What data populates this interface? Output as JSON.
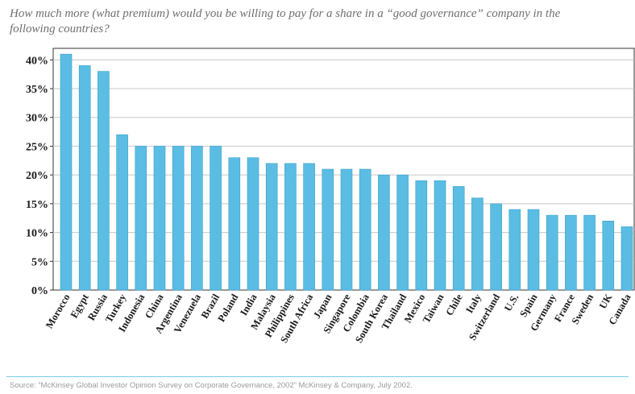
{
  "title": "How much more (what premium) would you be willing to pay for a share in a “good governance” company in the following countries?",
  "source": "Source: “McKinsey Global Investor Opinion Survey on Corporate Governance, 2002” McKinsey & Company, July 2002.",
  "colors": {
    "bar": "#5bbde3",
    "bar_stroke": "#3a9fca",
    "grid": "#c8c8c8",
    "axis": "#333333"
  },
  "chart_data": {
    "type": "bar",
    "title": "How much more (what premium) would you be willing to pay for a share in a “good governance” company in the following countries?",
    "xlabel": "",
    "ylabel": "",
    "ylim": [
      0,
      42
    ],
    "yticks": [
      "0%",
      "5%",
      "10%",
      "15%",
      "20%",
      "25%",
      "30%",
      "35%",
      "40%"
    ],
    "grid": true,
    "categories": [
      "Morocco",
      "Egypt",
      "Russia",
      "Turkey",
      "Indonesia",
      "China",
      "Argentina",
      "Venezuela",
      "Brazil",
      "Poland",
      "India",
      "Malaysia",
      "Philippines",
      "South Africa",
      "Japan",
      "Singapore",
      "Colombia",
      "South Korea",
      "Thailand",
      "Mexico",
      "Taiwan",
      "Chile",
      "Italy",
      "Switzerland",
      "U.S.",
      "Spain",
      "Germany",
      "France",
      "Sweden",
      "UK",
      "Canada"
    ],
    "values": [
      41,
      39,
      38,
      27,
      25,
      25,
      25,
      25,
      25,
      23,
      23,
      22,
      22,
      22,
      21,
      21,
      21,
      20,
      20,
      19,
      19,
      18,
      16,
      15,
      14,
      14,
      13,
      13,
      13,
      12,
      11
    ]
  }
}
